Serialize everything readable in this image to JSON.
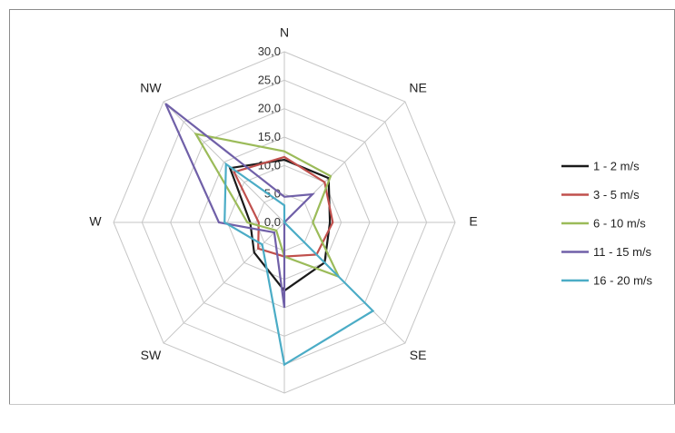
{
  "chart_data": {
    "type": "radar",
    "title": "",
    "categories": [
      "N",
      "NE",
      "E",
      "SE",
      "S",
      "SW",
      "W",
      "NW"
    ],
    "r_ticks": [
      "0,0",
      "5,0",
      "10,0",
      "15,0",
      "20,0",
      "25,0",
      "30,0"
    ],
    "rlim": [
      0,
      30
    ],
    "grid": true,
    "legend_position": "right",
    "series": [
      {
        "name": "1 - 2 m/s",
        "color": "#1a1a1a",
        "values": [
          11.0,
          11.0,
          8.0,
          10.0,
          12.0,
          7.5,
          6.0,
          13.5
        ]
      },
      {
        "name": "3 - 5 m/s",
        "color": "#c0504d",
        "values": [
          11.5,
          10.0,
          8.5,
          8.0,
          6.0,
          6.5,
          4.5,
          12.5
        ]
      },
      {
        "name": "6 - 10 m/s",
        "color": "#9bbb59",
        "values": [
          12.5,
          11.5,
          5.0,
          13.5,
          6.0,
          2.0,
          6.5,
          22.0
        ]
      },
      {
        "name": "11 - 15 m/s",
        "color": "#7060a8",
        "values": [
          4.5,
          7.0,
          0.0,
          0.0,
          15.0,
          2.5,
          11.5,
          29.5
        ]
      },
      {
        "name": "16 - 20 m/s",
        "color": "#4bacc6",
        "values": [
          3.0,
          0.0,
          0.0,
          22.0,
          25.0,
          5.5,
          10.5,
          14.5
        ]
      }
    ]
  }
}
